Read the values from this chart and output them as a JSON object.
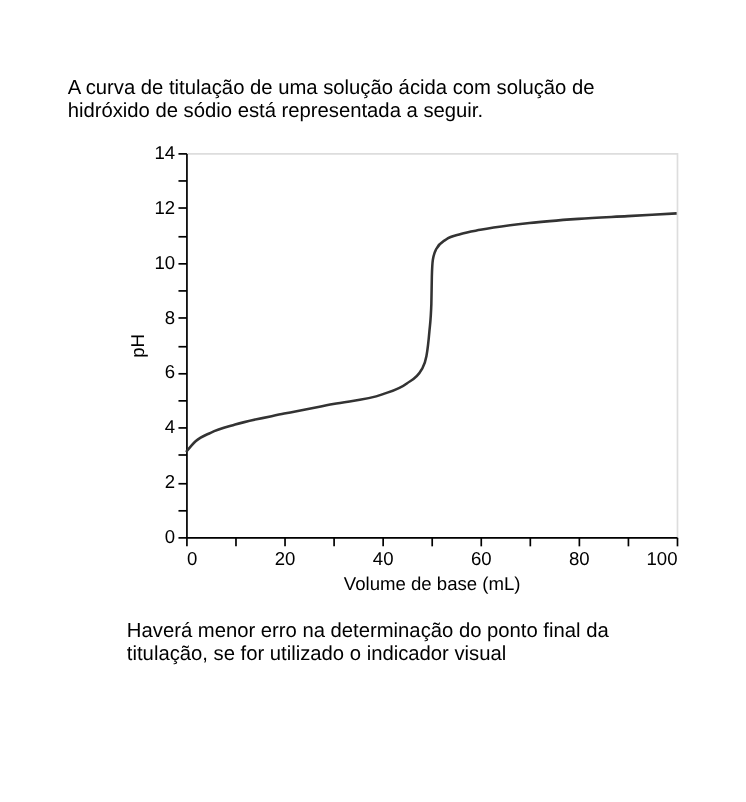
{
  "chart_data": {
    "type": "line",
    "title": "A curva de titulação de uma solução ácida com solução de hidróxido de sódio está representada a seguir.",
    "xlabel": "Volume de base (mL)",
    "ylabel": "pH",
    "x": [
      0,
      2,
      5,
      10,
      20,
      30,
      40,
      45,
      48,
      49,
      49.6,
      50,
      50.1,
      50.3,
      51,
      53,
      56,
      60,
      70,
      80,
      90,
      100
    ],
    "series": [
      {
        "color": "#333333",
        "values": [
          3.1,
          3.5,
          3.8,
          4.1,
          4.5,
          4.85,
          5.2,
          5.6,
          6.1,
          6.6,
          7.5,
          8.5,
          9.5,
          10.1,
          10.5,
          10.85,
          11.05,
          11.2,
          11.45,
          11.6,
          11.7,
          11.8
        ]
      }
    ],
    "xlim": [
      0,
      100
    ],
    "ylim": [
      0,
      14
    ],
    "xticks": [
      0,
      {
        "value": 10,
        "label": null
      },
      20,
      {
        "value": 30,
        "label": null
      },
      40,
      {
        "value": 50,
        "label": null
      },
      60,
      {
        "value": 70,
        "label": null
      },
      80,
      {
        "value": 90,
        "label": null
      },
      100
    ],
    "yticks": [
      0,
      {
        "value": 1,
        "label": null
      },
      2,
      {
        "value": 3,
        "label": null
      },
      4,
      {
        "value": 5,
        "label": null
      },
      6,
      {
        "value": 7,
        "label": null
      },
      8,
      {
        "value": 9,
        "label": null
      },
      10,
      {
        "value": 11,
        "label": null
      },
      12,
      {
        "value": 13,
        "label": null
      },
      14
    ],
    "grid": false,
    "marker": "none",
    "line_style": "solid",
    "annotations": [
      "Haverá menor erro na determinação do ponto final da titulação, se for utilizado o indicador visual"
    ]
  }
}
